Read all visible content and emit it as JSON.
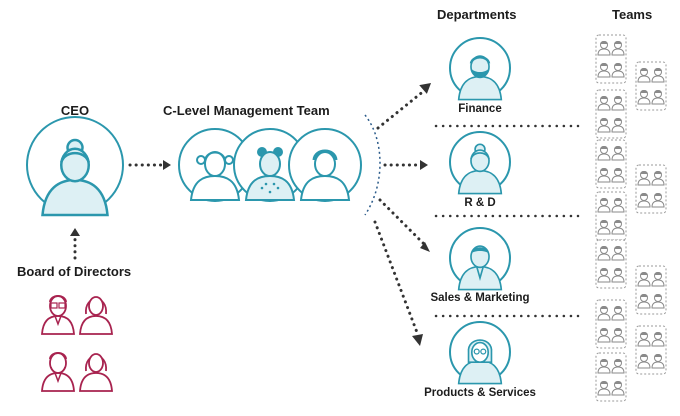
{
  "labels": {
    "ceo": "CEO",
    "c_level": "C-Level Management Team",
    "board": "Board of Directors",
    "departments_header": "Departments",
    "teams_header": "Teams"
  },
  "departments": [
    {
      "name": "Finance",
      "icon": "finance-person-icon"
    },
    {
      "name": "R & D",
      "icon": "rnd-person-icon"
    },
    {
      "name": "Sales & Marketing",
      "icon": "sales-marketing-person-icon"
    },
    {
      "name": "Products & Services",
      "icon": "products-services-person-icon"
    }
  ],
  "colors": {
    "teal": "#2b97ad",
    "teal_fill": "#ddf0f4",
    "board_red": "#a8234f",
    "dots": "#333333",
    "team_gray": "#8a8a8a"
  }
}
